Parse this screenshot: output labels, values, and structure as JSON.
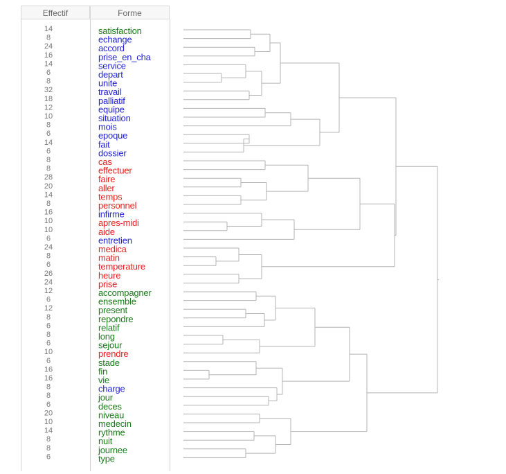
{
  "table": {
    "header_effectif": "Effectif",
    "header_forme": "Forme"
  },
  "colors": {
    "green": "#1a7a1a",
    "blue": "#1f1fd6",
    "red": "#e81e1e"
  },
  "chart_data": {
    "type": "dendrogram",
    "leaves": [
      {
        "effectif": "14",
        "forme": "satisfaction",
        "cls": "green"
      },
      {
        "effectif": "8",
        "forme": "echange",
        "cls": "blue"
      },
      {
        "effectif": "24",
        "forme": "accord",
        "cls": "blue"
      },
      {
        "effectif": "16",
        "forme": "prise_en_cha",
        "cls": "blue"
      },
      {
        "effectif": "14",
        "forme": "service",
        "cls": "blue"
      },
      {
        "effectif": "6",
        "forme": "depart",
        "cls": "blue"
      },
      {
        "effectif": "8",
        "forme": "unite",
        "cls": "blue"
      },
      {
        "effectif": "32",
        "forme": "travail",
        "cls": "blue"
      },
      {
        "effectif": "18",
        "forme": "palliatif",
        "cls": "blue"
      },
      {
        "effectif": "12",
        "forme": "equipe",
        "cls": "blue"
      },
      {
        "effectif": "10",
        "forme": "situation",
        "cls": "blue"
      },
      {
        "effectif": "8",
        "forme": "mois",
        "cls": "blue"
      },
      {
        "effectif": "6",
        "forme": "epoque",
        "cls": "blue"
      },
      {
        "effectif": "14",
        "forme": "fait",
        "cls": "blue"
      },
      {
        "effectif": "6",
        "forme": "dossier",
        "cls": "blue"
      },
      {
        "effectif": "8",
        "forme": "cas",
        "cls": "red"
      },
      {
        "effectif": "8",
        "forme": "effectuer",
        "cls": "red"
      },
      {
        "effectif": "28",
        "forme": "faire",
        "cls": "red"
      },
      {
        "effectif": "20",
        "forme": "aller",
        "cls": "red"
      },
      {
        "effectif": "14",
        "forme": "temps",
        "cls": "red"
      },
      {
        "effectif": "8",
        "forme": "personnel",
        "cls": "red"
      },
      {
        "effectif": "16",
        "forme": "infirme",
        "cls": "blue"
      },
      {
        "effectif": "10",
        "forme": "apres-midi",
        "cls": "red"
      },
      {
        "effectif": "10",
        "forme": "aide",
        "cls": "red"
      },
      {
        "effectif": "6",
        "forme": "entretien",
        "cls": "blue"
      },
      {
        "effectif": "24",
        "forme": "medica",
        "cls": "red"
      },
      {
        "effectif": "8",
        "forme": "matin",
        "cls": "red"
      },
      {
        "effectif": "6",
        "forme": "temperature",
        "cls": "red"
      },
      {
        "effectif": "26",
        "forme": "heure",
        "cls": "red"
      },
      {
        "effectif": "24",
        "forme": "prise",
        "cls": "red"
      },
      {
        "effectif": "12",
        "forme": "accompagner",
        "cls": "green"
      },
      {
        "effectif": "6",
        "forme": "ensemble",
        "cls": "green"
      },
      {
        "effectif": "12",
        "forme": "present",
        "cls": "green"
      },
      {
        "effectif": "8",
        "forme": "repondre",
        "cls": "green"
      },
      {
        "effectif": "6",
        "forme": "relatif",
        "cls": "green"
      },
      {
        "effectif": "8",
        "forme": "long",
        "cls": "green"
      },
      {
        "effectif": "6",
        "forme": "sejour",
        "cls": "green"
      },
      {
        "effectif": "10",
        "forme": "prendre",
        "cls": "red"
      },
      {
        "effectif": "6",
        "forme": "stade",
        "cls": "green"
      },
      {
        "effectif": "16",
        "forme": "fin",
        "cls": "green"
      },
      {
        "effectif": "16",
        "forme": "vie",
        "cls": "green"
      },
      {
        "effectif": "8",
        "forme": "charge",
        "cls": "blue"
      },
      {
        "effectif": "8",
        "forme": "jour",
        "cls": "green"
      },
      {
        "effectif": "6",
        "forme": "deces",
        "cls": "green"
      },
      {
        "effectif": "20",
        "forme": "niveau",
        "cls": "green"
      },
      {
        "effectif": "10",
        "forme": "medecin",
        "cls": "green"
      },
      {
        "effectif": "14",
        "forme": "rythme",
        "cls": "green"
      },
      {
        "effectif": "8",
        "forme": "nuit",
        "cls": "green"
      },
      {
        "effectif": "8",
        "forme": "journee",
        "cls": "green"
      },
      {
        "effectif": "6",
        "forme": "type",
        "cls": "green"
      }
    ]
  }
}
